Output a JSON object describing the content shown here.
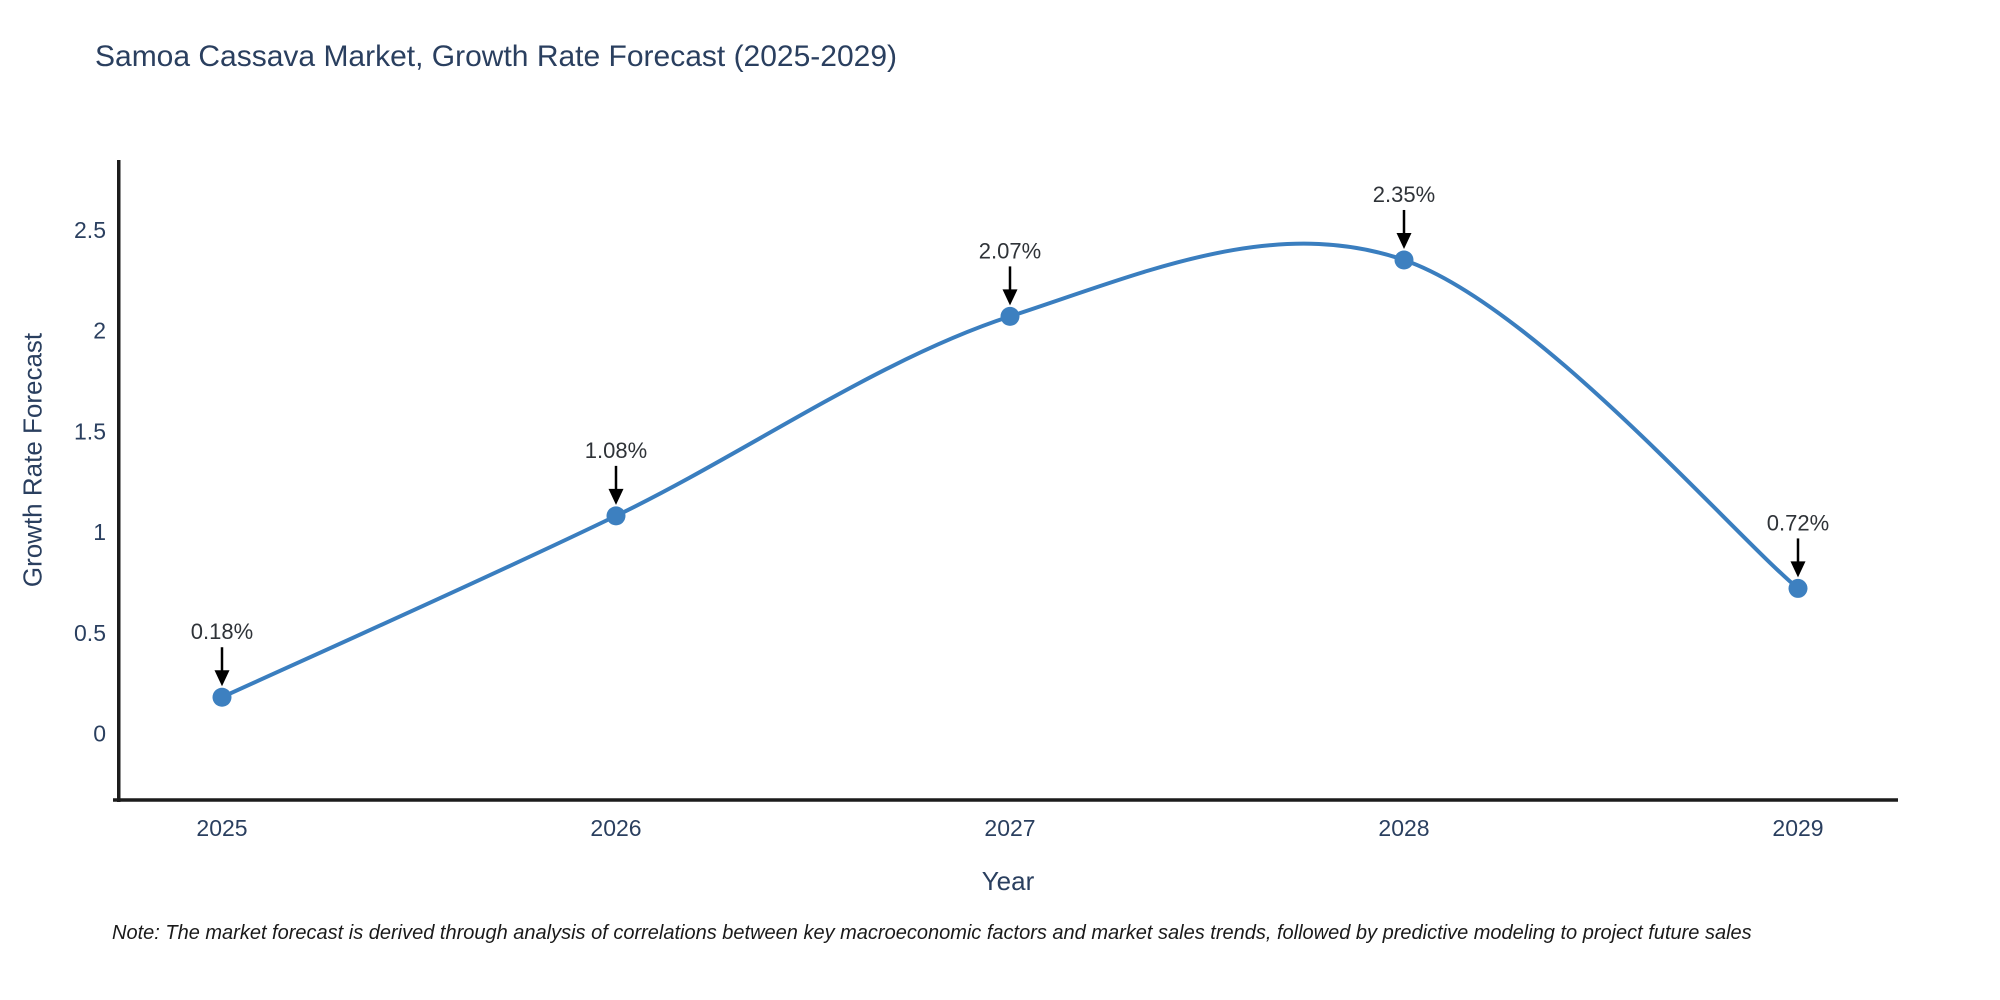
{
  "header": {
    "title": "Samoa Cassava Market, Growth Rate Forecast (2025-2029)"
  },
  "chart_data": {
    "type": "line",
    "line_shape": "spline",
    "title": "Samoa Cassava Market, Growth Rate Forecast (2025-2029)",
    "xlabel": "Year",
    "ylabel": "Growth Rate Forecast",
    "categories": [
      "2025",
      "2026",
      "2027",
      "2028",
      "2029"
    ],
    "values": [
      0.18,
      1.08,
      2.07,
      2.35,
      0.72
    ],
    "point_labels": [
      "0.18%",
      "1.08%",
      "2.07%",
      "2.35%",
      "0.72%"
    ],
    "y_tick_labels": [
      "0",
      "0.5",
      "1",
      "1.5",
      "2",
      "2.5"
    ],
    "y_tick_values": [
      0,
      0.5,
      1,
      1.5,
      2,
      2.5
    ],
    "ylim": [
      -0.33,
      2.85
    ],
    "grid": false,
    "legend": false,
    "annotations": "arrow-down-to-point",
    "colors": {
      "line": "#3a7ebf",
      "marker": "#3d80c0",
      "arrow": "#000000",
      "axis_line": "#1c1c1c",
      "text": "#2a3f5f"
    }
  },
  "footnote": {
    "text": "Note: The market forecast is derived through analysis of correlations between key macroeconomic factors and market sales trends, followed by predictive modeling to project future sales"
  }
}
